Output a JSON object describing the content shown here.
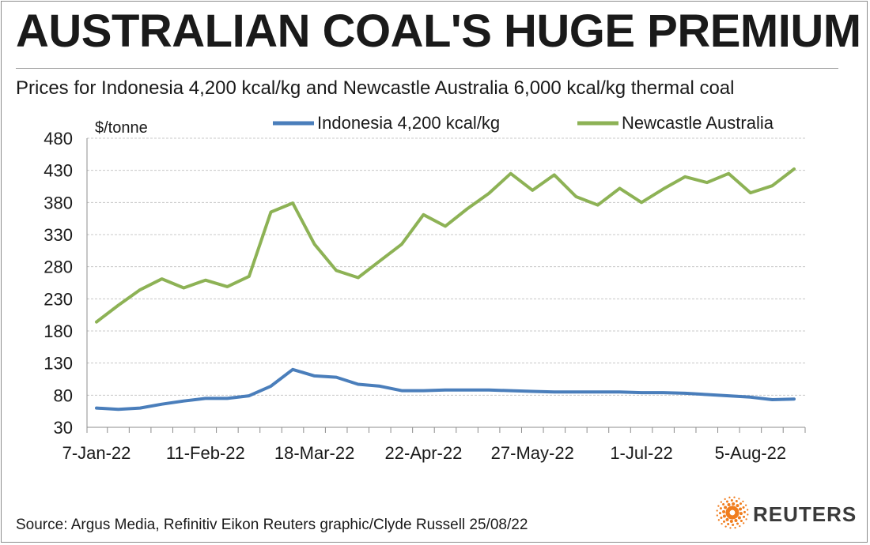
{
  "title": "AUSTRALIAN COAL'S HUGE PREMIUM",
  "subtitle": "Prices for Indonesia 4,200 kcal/kg and Newcastle Australia 6,000 kcal/kg thermal coal",
  "source": "Source: Argus Media, Refinitiv Eikon    Reuters graphic/Clyde Russell 25/08/22",
  "logo": {
    "text": "REUTERS",
    "icon": "reuters-dots-icon",
    "color": "#f07d1e"
  },
  "chart_data": {
    "type": "line",
    "ylabel": "$/tonne",
    "ylim": [
      30,
      480
    ],
    "yticks": [
      30,
      80,
      130,
      180,
      230,
      280,
      330,
      380,
      430,
      480
    ],
    "xtick_labels": [
      "7-Jan-22",
      "11-Feb-22",
      "18-Mar-22",
      "22-Apr-22",
      "27-May-22",
      "1-Jul-22",
      "5-Aug-22"
    ],
    "xtick_every": 5,
    "grid": true,
    "legend": "top",
    "x": [
      "7-Jan-22",
      "14-Jan-22",
      "21-Jan-22",
      "28-Jan-22",
      "4-Feb-22",
      "11-Feb-22",
      "18-Feb-22",
      "25-Feb-22",
      "4-Mar-22",
      "11-Mar-22",
      "18-Mar-22",
      "25-Mar-22",
      "1-Apr-22",
      "8-Apr-22",
      "15-Apr-22",
      "22-Apr-22",
      "29-Apr-22",
      "6-May-22",
      "13-May-22",
      "20-May-22",
      "27-May-22",
      "3-Jun-22",
      "10-Jun-22",
      "17-Jun-22",
      "24-Jun-22",
      "1-Jul-22",
      "8-Jul-22",
      "15-Jul-22",
      "22-Jul-22",
      "29-Jul-22",
      "5-Aug-22",
      "12-Aug-22",
      "19-Aug-22"
    ],
    "series": [
      {
        "name": "Indonesia 4,200 kcal/kg",
        "color": "#4a7ebb",
        "values": [
          60,
          58,
          60,
          66,
          71,
          75,
          75,
          79,
          94,
          120,
          110,
          108,
          97,
          94,
          87,
          87,
          88,
          88,
          88,
          87,
          86,
          85,
          85,
          85,
          85,
          84,
          84,
          83,
          81,
          79,
          77,
          73,
          74
        ]
      },
      {
        "name": "Newcastle Australia",
        "color": "#8db255",
        "values": [
          194,
          220,
          244,
          261,
          247,
          259,
          249,
          265,
          365,
          379,
          315,
          274,
          263,
          289,
          315,
          361,
          343,
          370,
          394,
          425,
          399,
          423,
          389,
          376,
          402,
          380,
          401,
          420,
          411,
          425,
          395,
          406,
          432
        ]
      }
    ]
  }
}
